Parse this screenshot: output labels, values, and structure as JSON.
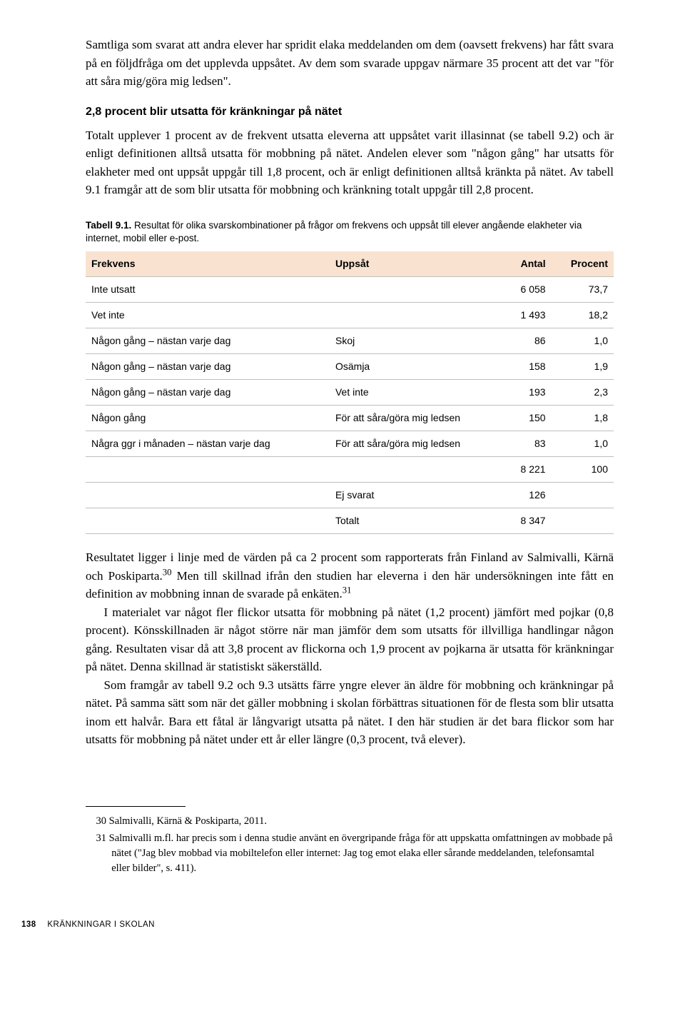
{
  "intro_para": "Samtliga som svarat att andra elever har spridit elaka meddelanden om dem (oavsett frekvens) har fått svara på en följdfråga om det upplevda uppsåtet. Av dem som svarade uppgav närmare 35 procent att det var \"för att såra mig/göra mig ledsen\".",
  "heading": "2,8 procent blir utsatta för kränkningar på nätet",
  "para2": "Totalt upplever 1 procent av de frekvent utsatta eleverna att uppsåtet varit illasinnat (se tabell 9.2) och är enligt definitionen alltså utsatta för mobbning på nätet. Andelen elever som \"någon gång\" har utsatts för elakheter med ont uppsåt uppgår till 1,8 procent, och är enligt definitionen alltså kränkta på nätet. Av tabell 9.1 framgår att de som blir utsatta för mobbning och kränkning totalt uppgår till 2,8 procent.",
  "table_caption_bold": "Tabell 9.1.",
  "table_caption_rest": " Resultat för olika svarskombinationer på frågor om frekvens och uppsåt till elever angående elakheter via internet, mobil eller e-post.",
  "columns": {
    "c0": "Frekvens",
    "c1": "Uppsåt",
    "c2": "Antal",
    "c3": "Procent"
  },
  "rows": [
    {
      "c0": "Inte utsatt",
      "c1": "",
      "c2": "6 058",
      "c3": "73,7"
    },
    {
      "c0": "Vet inte",
      "c1": "",
      "c2": "1 493",
      "c3": "18,2"
    },
    {
      "c0": "Någon gång – nästan varje dag",
      "c1": "Skoj",
      "c2": "86",
      "c3": "1,0"
    },
    {
      "c0": "Någon gång – nästan varje dag",
      "c1": "Osämja",
      "c2": "158",
      "c3": "1,9"
    },
    {
      "c0": "Någon gång – nästan varje dag",
      "c1": "Vet inte",
      "c2": "193",
      "c3": "2,3"
    },
    {
      "c0": "Någon gång",
      "c1": "För att såra/göra mig ledsen",
      "c2": "150",
      "c3": "1,8"
    },
    {
      "c0": "Några ggr i månaden – nästan varje dag",
      "c1": "För att såra/göra mig ledsen",
      "c2": "83",
      "c3": "1,0"
    },
    {
      "c0": "",
      "c1": "",
      "c2": "8 221",
      "c3": "100"
    },
    {
      "c0": "",
      "c1": "Ej svarat",
      "c2": "126",
      "c3": ""
    },
    {
      "c0": "",
      "c1": "Totalt",
      "c2": "8 347",
      "c3": ""
    }
  ],
  "para3a": "Resultatet ligger i linje med de värden på ca 2 procent som rapporterats från Finland av Salmivalli, Kärnä och Poskiparta.",
  "para3_sup1": "30",
  "para3b": " Men till skillnad ifrån den studien har eleverna i den här undersökningen inte fått en definition av mobbning innan de svarade på enkäten.",
  "para3_sup2": "31",
  "para4": "I materialet var något fler flickor utsatta för mobbning på nätet (1,2 procent) jämfört med pojkar (0,8 procent). Könsskillnaden är något större när man jämför dem som utsatts för illvilliga handlingar någon gång. Resultaten visar då att 3,8 procent av flickorna och 1,9 procent av pojkarna är utsatta för kränkningar på nätet. Denna skillnad är statistiskt säkerställd.",
  "para5": "Som framgår av tabell 9.2 och 9.3 utsätts färre yngre elever än äldre för mobbning och kränkningar på nätet. På samma sätt som när det gäller mobbning i skolan förbättras situationen för de flesta som blir utsatta inom ett halvår. Bara ett fåtal är långvarigt utsatta på nätet. I den här studien är det bara flickor som har utsatts för mobbning på nätet under ett år eller längre (0,3 procent, två elever).",
  "footnotes": {
    "f30": "30  Salmivalli, Kärnä & Poskiparta, 2011.",
    "f31": "31  Salmivalli m.fl. har precis som i denna studie använt en övergripande fråga för att uppskatta omfattningen av mobbade på nätet (\"Jag blev mobbad via mobiltelefon eller internet: Jag tog emot elaka eller sårande meddelanden, telefonsamtal eller bilder\", s. 411)."
  },
  "page_num": "138",
  "running_title": "KRÄNKNINGAR I SKOLAN"
}
